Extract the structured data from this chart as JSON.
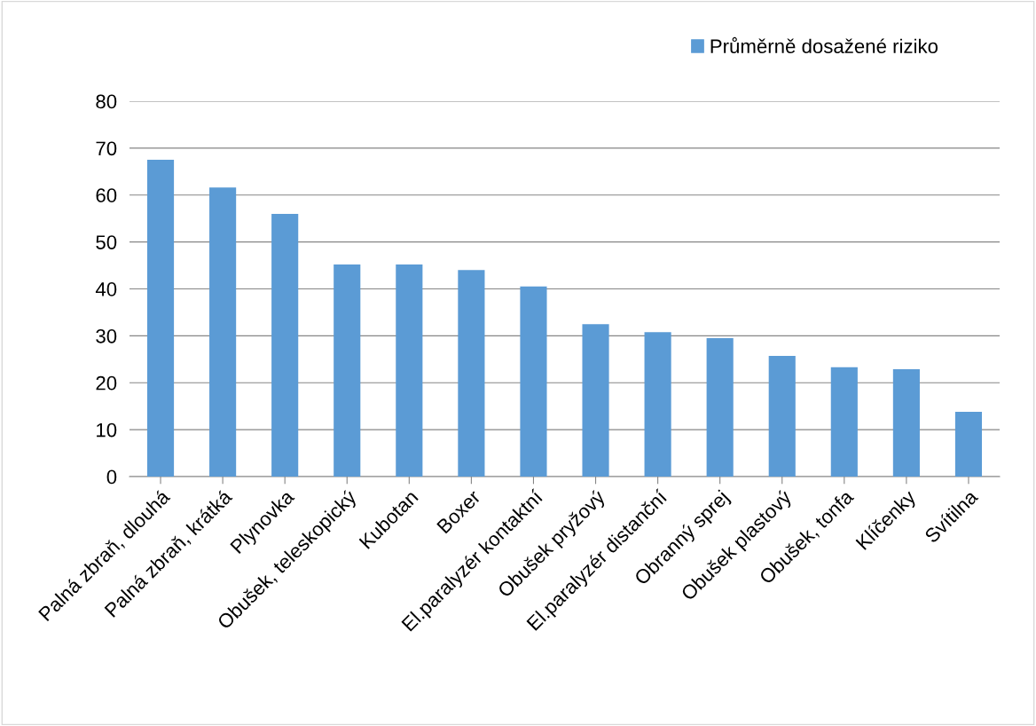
{
  "chart_data": {
    "type": "bar",
    "categories": [
      "Palná zbraň, dlouhá",
      "Palná zbraň, krátká",
      "Plynovka",
      "Obušek, teleskopický",
      "Kubotan",
      "Boxer",
      "El.paralyzér kontaktní",
      "Obušek pryžový",
      "El.paralyzér distanční",
      "Obranný sprej",
      "Obušek plastový",
      "Obušek, tonfa",
      "Klíčenky",
      "Svítilna"
    ],
    "series": [
      {
        "name": "Průměrně dosažené riziko",
        "color": "#5b9bd5",
        "values": [
          67.5,
          61.6,
          56.0,
          45.2,
          45.2,
          44.0,
          40.5,
          32.5,
          30.8,
          29.5,
          25.7,
          23.3,
          22.9,
          13.8
        ]
      }
    ],
    "ylim": [
      0,
      80
    ],
    "yticks": [
      0,
      10,
      20,
      30,
      40,
      50,
      60,
      70,
      80
    ],
    "grid": "y",
    "legend": "top right"
  }
}
